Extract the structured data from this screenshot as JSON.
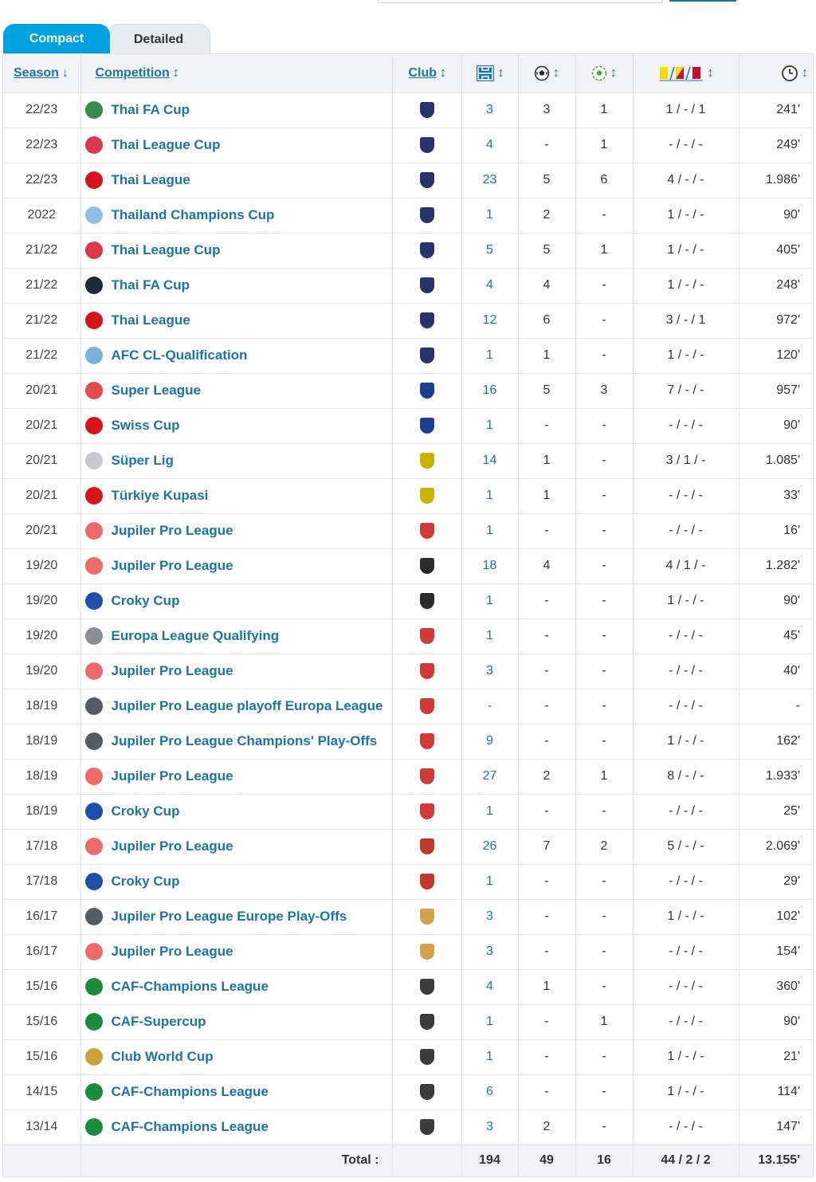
{
  "tabs": {
    "compact": "Compact",
    "detailed": "Detailed"
  },
  "headers": {
    "season": "Season",
    "competition": "Competition",
    "club": "Club",
    "appearances_icon": "pitch-icon",
    "goals_icon": "ball-icon",
    "assists_icon": "assist-icon",
    "cards_icon": "cards-icon",
    "minutes_icon": "clock-icon",
    "season_arrow": "↓",
    "sort_arrow": "↕"
  },
  "rows": [
    {
      "season": "22/23",
      "competition": "Thai FA Cup",
      "logo_color": "#3a8a4a",
      "crest_color": "#27336f",
      "apps": "3",
      "goals": "3",
      "assists": "1",
      "cards": "1 / - / 1",
      "minutes": "241'"
    },
    {
      "season": "22/23",
      "competition": "Thai League Cup",
      "logo_color": "#d93a4b",
      "crest_color": "#27336f",
      "apps": "4",
      "goals": "-",
      "assists": "1",
      "cards": "- / - / -",
      "minutes": "249'"
    },
    {
      "season": "22/23",
      "competition": "Thai League",
      "logo_color": "#d6121b",
      "crest_color": "#27336f",
      "apps": "23",
      "goals": "5",
      "assists": "6",
      "cards": "4 / - / -",
      "minutes": "1.986'"
    },
    {
      "season": "2022",
      "competition": "Thailand Champions Cup",
      "logo_color": "#8fbfe3",
      "crest_color": "#27336f",
      "apps": "1",
      "goals": "2",
      "assists": "-",
      "cards": "1 / - / -",
      "minutes": "90'"
    },
    {
      "season": "21/22",
      "competition": "Thai League Cup",
      "logo_color": "#d93a4b",
      "crest_color": "#27336f",
      "apps": "5",
      "goals": "5",
      "assists": "1",
      "cards": "1 / - / -",
      "minutes": "405'"
    },
    {
      "season": "21/22",
      "competition": "Thai FA Cup",
      "logo_color": "#1e2a3a",
      "crest_color": "#27336f",
      "apps": "4",
      "goals": "4",
      "assists": "-",
      "cards": "1 / - / -",
      "minutes": "248'"
    },
    {
      "season": "21/22",
      "competition": "Thai League",
      "logo_color": "#d6121b",
      "crest_color": "#27336f",
      "apps": "12",
      "goals": "6",
      "assists": "-",
      "cards": "3 / - / 1",
      "minutes": "972'"
    },
    {
      "season": "21/22",
      "competition": "AFC CL-Qualification",
      "logo_color": "#7bb2d9",
      "crest_color": "#27336f",
      "apps": "1",
      "goals": "1",
      "assists": "-",
      "cards": "1 / - / -",
      "minutes": "120'"
    },
    {
      "season": "20/21",
      "competition": "Super League",
      "logo_color": "#e24c4c",
      "crest_color": "#1b3f8c",
      "apps": "16",
      "goals": "5",
      "assists": "3",
      "cards": "7 / - / -",
      "minutes": "957'"
    },
    {
      "season": "20/21",
      "competition": "Swiss Cup",
      "logo_color": "#d6121b",
      "crest_color": "#1b3f8c",
      "apps": "1",
      "goals": "-",
      "assists": "-",
      "cards": "- / - / -",
      "minutes": "90'"
    },
    {
      "season": "20/21",
      "competition": "Süper Lig",
      "logo_color": "#c7c9cc",
      "crest_color": "#c9b200",
      "apps": "14",
      "goals": "1",
      "assists": "-",
      "cards": "3 / 1 / -",
      "minutes": "1.085'"
    },
    {
      "season": "20/21",
      "competition": "Türkiye Kupasi",
      "logo_color": "#d6121b",
      "crest_color": "#c9b200",
      "apps": "1",
      "goals": "1",
      "assists": "-",
      "cards": "- / - / -",
      "minutes": "33'"
    },
    {
      "season": "20/21",
      "competition": "Jupiler Pro League",
      "logo_color": "#f06a6a",
      "crest_color": "#d23a3a",
      "apps": "1",
      "goals": "-",
      "assists": "-",
      "cards": "- / - / -",
      "minutes": "16'"
    },
    {
      "season": "19/20",
      "competition": "Jupiler Pro League",
      "logo_color": "#f06a6a",
      "crest_color": "#2a2a2a",
      "apps": "18",
      "goals": "4",
      "assists": "-",
      "cards": "4 / 1 / -",
      "minutes": "1.282'"
    },
    {
      "season": "19/20",
      "competition": "Croky Cup",
      "logo_color": "#1f4fa8",
      "crest_color": "#2a2a2a",
      "apps": "1",
      "goals": "-",
      "assists": "-",
      "cards": "1 / - / -",
      "minutes": "90'"
    },
    {
      "season": "19/20",
      "competition": "Europa League Qualifying",
      "logo_color": "#8a8f96",
      "crest_color": "#d23a3a",
      "apps": "1",
      "goals": "-",
      "assists": "-",
      "cards": "- / - / -",
      "minutes": "45'"
    },
    {
      "season": "19/20",
      "competition": "Jupiler Pro League",
      "logo_color": "#f06a6a",
      "crest_color": "#d23a3a",
      "apps": "3",
      "goals": "-",
      "assists": "-",
      "cards": "- / - / -",
      "minutes": "40'"
    },
    {
      "season": "18/19",
      "competition": "Jupiler Pro League playoff Europa League",
      "logo_color": "#555b63",
      "crest_color": "#d23a3a",
      "apps": "-",
      "goals": "-",
      "assists": "-",
      "cards": "- / - / -",
      "minutes": "-"
    },
    {
      "season": "18/19",
      "competition": "Jupiler Pro League Champions' Play-Offs",
      "logo_color": "#555b63",
      "crest_color": "#d23a3a",
      "apps": "9",
      "goals": "-",
      "assists": "-",
      "cards": "1 / - / -",
      "minutes": "162'"
    },
    {
      "season": "18/19",
      "competition": "Jupiler Pro League",
      "logo_color": "#f06a6a",
      "crest_color": "#d23a3a",
      "apps": "27",
      "goals": "2",
      "assists": "1",
      "cards": "8 / - / -",
      "minutes": "1.933'"
    },
    {
      "season": "18/19",
      "competition": "Croky Cup",
      "logo_color": "#1f4fa8",
      "crest_color": "#d23a3a",
      "apps": "1",
      "goals": "-",
      "assists": "-",
      "cards": "- / - / -",
      "minutes": "25'"
    },
    {
      "season": "17/18",
      "competition": "Jupiler Pro League",
      "logo_color": "#f06a6a",
      "crest_color": "#c0392b",
      "apps": "26",
      "goals": "7",
      "assists": "2",
      "cards": "5 / - / -",
      "minutes": "2.069'"
    },
    {
      "season": "17/18",
      "competition": "Croky Cup",
      "logo_color": "#1f4fa8",
      "crest_color": "#c0392b",
      "apps": "1",
      "goals": "-",
      "assists": "-",
      "cards": "- / - / -",
      "minutes": "29'"
    },
    {
      "season": "16/17",
      "competition": "Jupiler Pro League Europe Play-Offs",
      "logo_color": "#555b63",
      "crest_color": "#d4a24a",
      "apps": "3",
      "goals": "-",
      "assists": "-",
      "cards": "1 / - / -",
      "minutes": "102'"
    },
    {
      "season": "16/17",
      "competition": "Jupiler Pro League",
      "logo_color": "#f06a6a",
      "crest_color": "#d4a24a",
      "apps": "3",
      "goals": "-",
      "assists": "-",
      "cards": "- / - / -",
      "minutes": "154'"
    },
    {
      "season": "15/16",
      "competition": "CAF-Champions League",
      "logo_color": "#1f8a3e",
      "crest_color": "#3b3b3b",
      "apps": "4",
      "goals": "1",
      "assists": "-",
      "cards": "- / - / -",
      "minutes": "360'"
    },
    {
      "season": "15/16",
      "competition": "CAF-Supercup",
      "logo_color": "#1f8a3e",
      "crest_color": "#3b3b3b",
      "apps": "1",
      "goals": "-",
      "assists": "1",
      "cards": "- / - / -",
      "minutes": "90'"
    },
    {
      "season": "15/16",
      "competition": "Club World Cup",
      "logo_color": "#c9a23a",
      "crest_color": "#3b3b3b",
      "apps": "1",
      "goals": "-",
      "assists": "-",
      "cards": "1 / - / -",
      "minutes": "21'"
    },
    {
      "season": "14/15",
      "competition": "CAF-Champions League",
      "logo_color": "#1f8a3e",
      "crest_color": "#3b3b3b",
      "apps": "6",
      "goals": "-",
      "assists": "-",
      "cards": "1 / - / -",
      "minutes": "114'"
    },
    {
      "season": "13/14",
      "competition": "CAF-Champions League",
      "logo_color": "#1f8a3e",
      "crest_color": "#3b3b3b",
      "apps": "3",
      "goals": "2",
      "assists": "-",
      "cards": "- / - / -",
      "minutes": "147'"
    }
  ],
  "totals": {
    "label": "Total :",
    "apps": "194",
    "goals": "49",
    "assists": "16",
    "cards": "44 / 2 / 2",
    "minutes": "13.155'"
  },
  "colors": {
    "accent": "#1d75a3",
    "tab_active": "#00a2e2",
    "header_bg": "#f2f3f5",
    "yellow_card": "#f5d90a",
    "red_card": "#c8102e"
  }
}
